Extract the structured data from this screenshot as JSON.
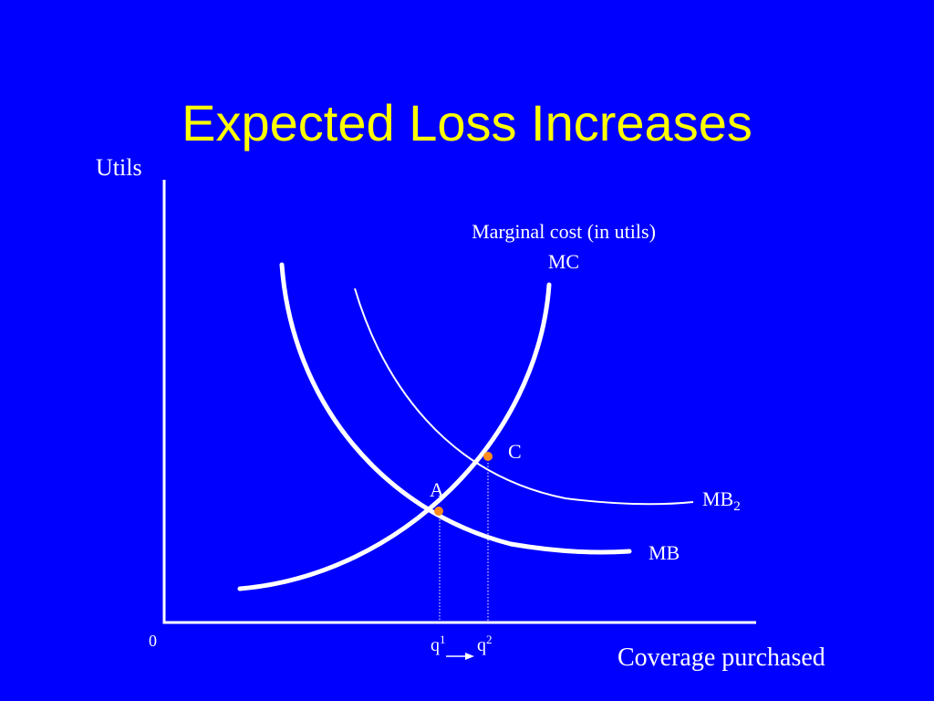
{
  "slide": {
    "title": "Expected Loss Increases",
    "background_color": "#0000FF",
    "title_color": "#FFFF00"
  },
  "diagram": {
    "y_axis_label": "Utils",
    "x_axis_label": "Coverage purchased",
    "origin_label": "0",
    "mc_caption": "Marginal cost (in utils)",
    "mc_label": "MC",
    "mb_label": "MB",
    "mb2_label": "MB",
    "mb2_subscript": "2",
    "point_a_label": "A",
    "point_c_label": "C",
    "q1_label": "q",
    "q1_superscript": "1",
    "q2_label": "q",
    "q2_superscript": "2",
    "point_color": "#FF8C1A",
    "line_color": "#FFFFFF"
  }
}
